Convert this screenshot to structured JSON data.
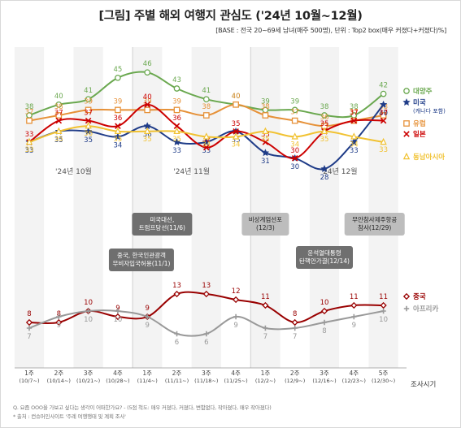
{
  "header": {
    "title": "[그림] 주별 해외 여행지 관심도 ('24년 10월~12월)",
    "subtitle": "[BASE : 전국 20~69세 남녀(매주 500명), 단위 : Top2 box(매우 커졌다+커졌다)%]"
  },
  "footer": {
    "note": "Q. 요즘 OOO을 가보고 싶다는 생각이 어떠한가요? - (5점 척도: 매우 커졌다, 커졌다, 변함없다, 작아졌다, 매우 작아졌다)",
    "source": "* 출처 : 컨슈머인사이트 '주례 여행행태 및 계획 조사'"
  },
  "chart_data": {
    "type": "line",
    "x_axis_title": "조사시기",
    "categories": [
      {
        "week": "1주",
        "date": "(10/7~)"
      },
      {
        "week": "2주",
        "date": "(10/14~)"
      },
      {
        "week": "3주",
        "date": "(10/21~)"
      },
      {
        "week": "4주",
        "date": "(10/28~)"
      },
      {
        "week": "1주",
        "date": "(11/4~)"
      },
      {
        "week": "2주",
        "date": "(11/11~)"
      },
      {
        "week": "3주",
        "date": "(11/18~)"
      },
      {
        "week": "4주",
        "date": "(11/25~)"
      },
      {
        "week": "1주",
        "date": "(12/2~)"
      },
      {
        "week": "2주",
        "date": "(12/9~)"
      },
      {
        "week": "3주",
        "date": "(12/16~)"
      },
      {
        "week": "4주",
        "date": "(12/23~)"
      },
      {
        "week": "5주",
        "date": "(12/30~)"
      }
    ],
    "month_labels": [
      "'24년 10월",
      "'24년 11월",
      "'24년 12월"
    ],
    "series": [
      {
        "name": "대양주",
        "color": "#6aa84f",
        "marker": "circle",
        "values": [
          38,
          40,
          41,
          45,
          46,
          43,
          41,
          40,
          39,
          39,
          38,
          38,
          42
        ]
      },
      {
        "name": "유럽",
        "color": "#e69138",
        "marker": "square",
        "values": [
          37,
          38,
          39,
          39,
          39,
          39,
          38,
          40,
          38,
          37,
          36,
          37,
          38
        ]
      },
      {
        "name": "미국",
        "sublabel": "(캐나다 포함)",
        "color": "#1f3c88",
        "marker": "star",
        "values": [
          33,
          35,
          35,
          34,
          36,
          33,
          33,
          35,
          31,
          30,
          28,
          33,
          40
        ]
      },
      {
        "name": "일본",
        "color": "#cc0000",
        "marker": "x",
        "values": [
          33,
          37,
          37,
          36,
          40,
          36,
          32,
          35,
          33,
          30,
          35,
          37,
          37
        ]
      },
      {
        "name": "동남아시아",
        "color": "#f1c232",
        "marker": "triangle",
        "values": [
          33,
          35,
          36,
          35,
          35,
          35,
          34,
          34,
          35,
          34,
          35,
          34,
          33
        ]
      },
      {
        "name": "중국",
        "color": "#990000",
        "marker": "diamond",
        "values": [
          8,
          8,
          10,
          9,
          9,
          13,
          13,
          12,
          11,
          8,
          10,
          11,
          11
        ]
      },
      {
        "name": "아프리카",
        "color": "#999999",
        "marker": "plus",
        "values": [
          7,
          9,
          10,
          10,
          9,
          6,
          6,
          9,
          7,
          7,
          8,
          9,
          10
        ]
      }
    ],
    "annotations": [
      {
        "text": [
          "미국대선,",
          "트럼프당선(11/6)"
        ],
        "style": "dark"
      },
      {
        "text": [
          "중국, 한국인관광객",
          "무비자입국허용(11/1)"
        ],
        "style": "dark"
      },
      {
        "text": [
          "비상계엄선포",
          "(12/3)"
        ],
        "style": "light"
      },
      {
        "text": [
          "무안참사제주항공",
          "참사(12/29)"
        ],
        "style": "light"
      },
      {
        "text": [
          "윤석열대통령",
          "탄핵안가결(12/14)"
        ],
        "style": "dark"
      }
    ]
  }
}
